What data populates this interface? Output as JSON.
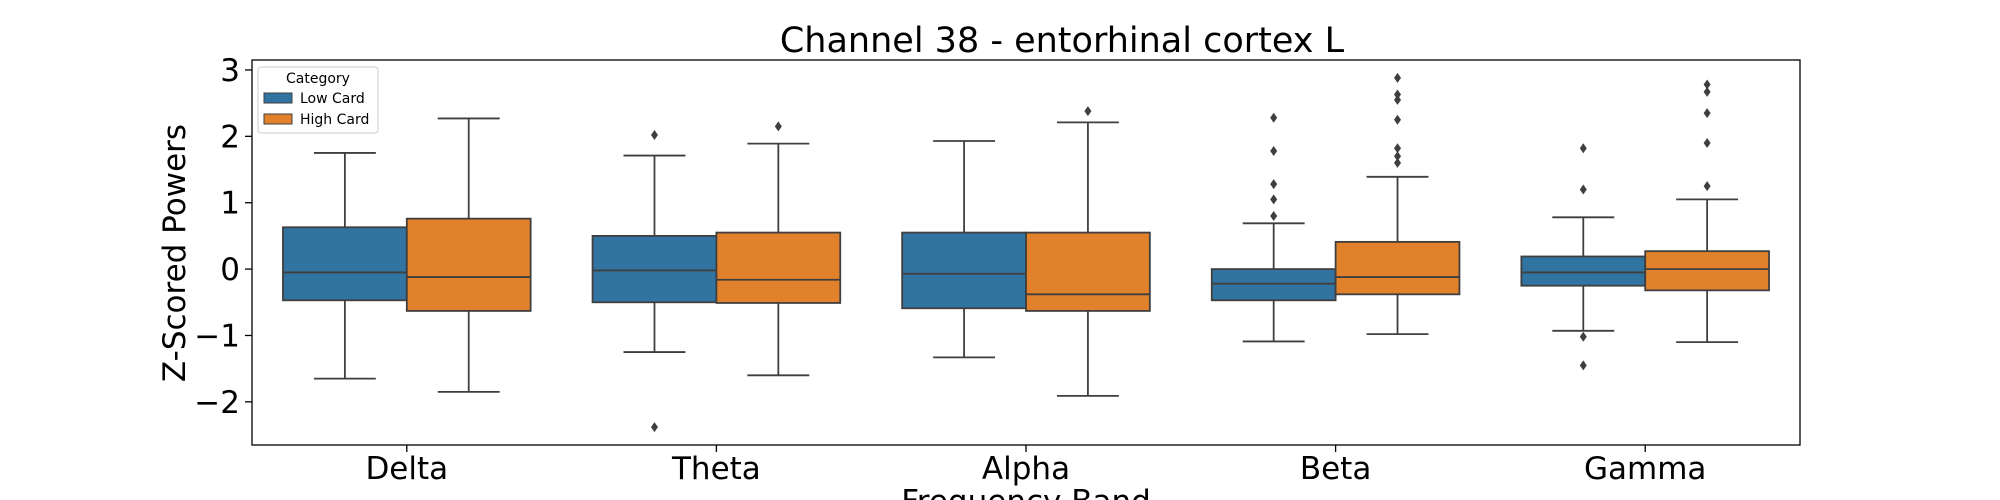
{
  "chart_data": {
    "type": "box",
    "title": "Channel 38 - entorhinal cortex L",
    "xlabel": "Frequency Band",
    "ylabel": "Z-Scored Powers",
    "categories": [
      "Delta",
      "Theta",
      "Alpha",
      "Beta",
      "Gamma"
    ],
    "ylim": [
      -2.65,
      3.15
    ],
    "yticks": [
      3,
      2,
      1,
      0,
      -1,
      -2
    ],
    "ytick_labels": [
      "3",
      "2",
      "1",
      "0",
      "−1",
      "−2"
    ],
    "legend": {
      "title": "Category",
      "position": "top-left"
    },
    "series": [
      {
        "name": "Low Card",
        "color": "#3274a1",
        "boxes": [
          {
            "whisker_low": -1.65,
            "q1": -0.47,
            "median": -0.05,
            "q3": 0.63,
            "whisker_high": 1.75,
            "outliers": []
          },
          {
            "whisker_low": -1.25,
            "q1": -0.5,
            "median": -0.02,
            "q3": 0.5,
            "whisker_high": 1.71,
            "outliers": [
              2.02,
              -2.38
            ]
          },
          {
            "whisker_low": -1.33,
            "q1": -0.59,
            "median": -0.07,
            "q3": 0.55,
            "whisker_high": 1.93,
            "outliers": []
          },
          {
            "whisker_low": -1.09,
            "q1": -0.47,
            "median": -0.22,
            "q3": 0.0,
            "whisker_high": 0.69,
            "outliers": [
              2.28,
              1.78,
              1.28,
              1.05,
              0.8
            ]
          },
          {
            "whisker_low": -0.93,
            "q1": -0.25,
            "median": -0.05,
            "q3": 0.19,
            "whisker_high": 0.78,
            "outliers": [
              1.82,
              1.2,
              -1.02,
              -1.45
            ]
          }
        ]
      },
      {
        "name": "High Card",
        "color": "#e1812c",
        "boxes": [
          {
            "whisker_low": -1.85,
            "q1": -0.63,
            "median": -0.12,
            "q3": 0.76,
            "whisker_high": 2.27,
            "outliers": []
          },
          {
            "whisker_low": -1.6,
            "q1": -0.51,
            "median": -0.16,
            "q3": 0.55,
            "whisker_high": 1.89,
            "outliers": [
              2.15
            ]
          },
          {
            "whisker_low": -1.91,
            "q1": -0.63,
            "median": -0.38,
            "q3": 0.55,
            "whisker_high": 2.21,
            "outliers": [
              2.38
            ]
          },
          {
            "whisker_low": -0.98,
            "q1": -0.38,
            "median": -0.12,
            "q3": 0.41,
            "whisker_high": 1.39,
            "outliers": [
              2.88,
              2.63,
              2.55,
              2.25,
              1.82,
              1.7,
              1.6
            ]
          },
          {
            "whisker_low": -1.1,
            "q1": -0.32,
            "median": 0.0,
            "q3": 0.27,
            "whisker_high": 1.05,
            "outliers": [
              2.78,
              2.67,
              2.35,
              1.9,
              1.25
            ]
          }
        ]
      }
    ]
  }
}
